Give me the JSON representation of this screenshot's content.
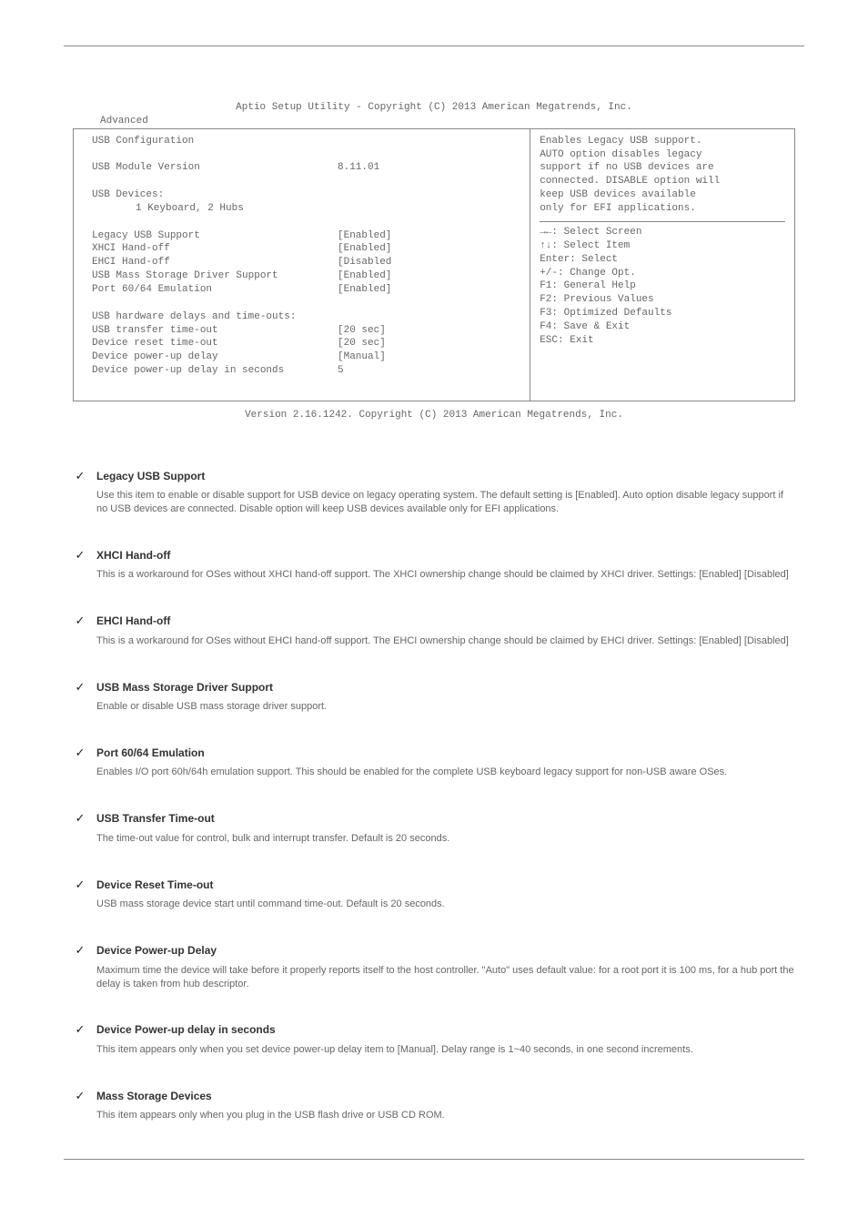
{
  "page": {
    "top_rule": true,
    "bottom_rule": true,
    "bg_color": "#ffffff",
    "text_color": "#666666",
    "border_color": "#888888"
  },
  "bios": {
    "header": "Aptio Setup Utility - Copyright (C) 2013 American Megatrends, Inc.",
    "tab": "Advanced",
    "footer": "Version 2.16.1242. Copyright (C) 2013 American Megatrends, Inc.",
    "left": {
      "title": "USB Configuration",
      "module_version_label": "USB Module Version",
      "module_version_value": "8.11.01",
      "devices_label": "USB Devices:",
      "devices_value": "1 Keyboard, 2 Hubs",
      "settings": [
        {
          "label": "Legacy USB Support",
          "value": "[Enabled]"
        },
        {
          "label": "XHCI Hand-off",
          "value": "[Enabled]"
        },
        {
          "label": "EHCI Hand-off",
          "value": "[Disabled"
        },
        {
          "label": "USB Mass Storage Driver Support",
          "value": "[Enabled]"
        },
        {
          "label": "Port 60/64 Emulation",
          "value": "[Enabled]"
        }
      ],
      "timeouts_header": "USB hardware delays and time-outs:",
      "timeouts": [
        {
          "label": "USB transfer time-out",
          "value": "[20 sec]"
        },
        {
          "label": "Device reset time-out",
          "value": "[20 sec]"
        },
        {
          "label": "Device power-up delay",
          "value": "[Manual]"
        },
        {
          "label": "Device power-up delay in seconds",
          "value": "5"
        }
      ]
    },
    "right": {
      "help_lines": [
        "Enables Legacy USB support.",
        "AUTO option disables legacy",
        "support if no USB devices are",
        "connected. DISABLE option will",
        "keep USB devices available",
        "only for EFI applications."
      ],
      "nav_lines": [
        "→←: Select Screen",
        "↑↓: Select Item",
        "Enter: Select",
        "+/-: Change Opt.",
        "F1: General Help",
        "F2: Previous Values",
        "F3: Optimized Defaults",
        "F4: Save & Exit",
        "ESC: Exit"
      ]
    }
  },
  "options": [
    {
      "name": "Legacy USB Support",
      "desc": "Use this item to enable or disable support for USB device on legacy operating system. The default setting is [Enabled]. Auto option disable legacy support if no USB devices are connected. Disable option will keep USB devices available only for EFI applications."
    },
    {
      "name": "XHCI Hand-off",
      "desc": "This is a workaround for OSes without XHCI hand-off support. The XHCI ownership change should be claimed by XHCI driver. Settings: [Enabled] [Disabled]"
    },
    {
      "name": "EHCI Hand-off",
      "desc": "This is a workaround for OSes without EHCI hand-off support. The EHCI ownership change should be claimed by EHCI driver. Settings: [Enabled] [Disabled]"
    },
    {
      "name": "USB Mass Storage Driver Support",
      "desc": "Enable or disable USB mass storage driver support."
    },
    {
      "name": "Port 60/64 Emulation",
      "desc": "Enables I/O port 60h/64h emulation support. This should be enabled for the complete USB keyboard legacy support for non-USB aware OSes."
    },
    {
      "name": "USB Transfer Time-out",
      "desc": "The time-out value for control, bulk and interrupt transfer. Default is 20 seconds."
    },
    {
      "name": "Device Reset Time-out",
      "desc": "USB mass storage device start until command time-out. Default is 20 seconds."
    },
    {
      "name": "Device Power-up Delay",
      "desc": "Maximum time the device will take before it properly reports itself to the host controller. \"Auto\" uses default value: for a root port it is 100 ms, for a hub port the delay is taken from hub descriptor."
    },
    {
      "name": "Device Power-up delay in seconds",
      "desc": "This item appears only when you set device power-up delay item to [Manual]. Delay range is 1~40 seconds, in one second increments."
    },
    {
      "name": "Mass Storage Devices",
      "desc": "This item appears only when you plug in the USB flash drive or USB CD ROM."
    }
  ]
}
